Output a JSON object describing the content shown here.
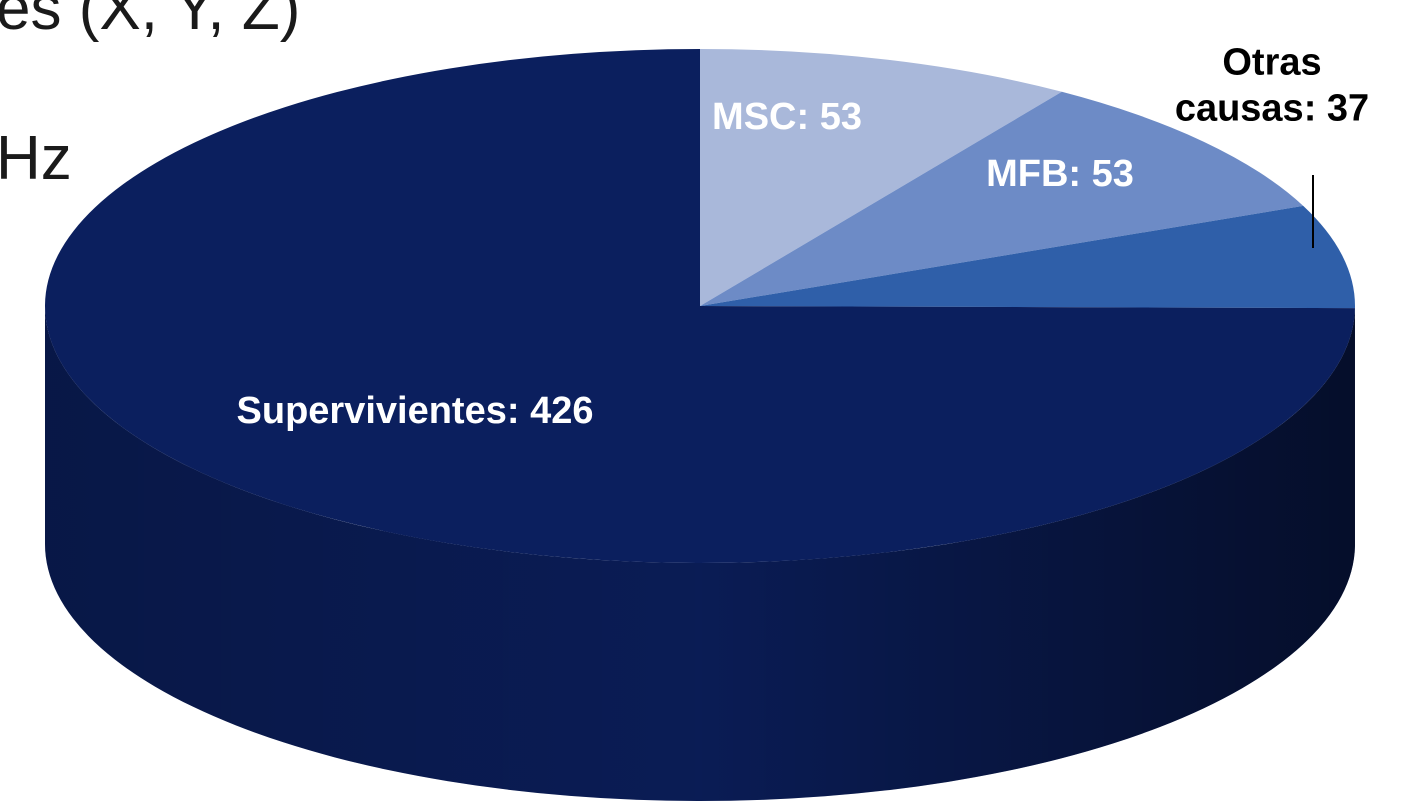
{
  "fragments": [
    "es (X, Y, Z)",
    "Hz"
  ],
  "chart_data": {
    "type": "pie",
    "values": [
      53,
      53,
      37,
      426
    ],
    "value_labels": [
      "MSC: 53",
      "MFB: 53",
      "Otras causas: 37",
      "Supervivientes: 426"
    ],
    "colors": [
      "#a9b8da",
      "#6d8bc6",
      "#2f5fa9",
      "#0b1f5e"
    ],
    "start_angle": 90,
    "direction": "clockwise"
  }
}
